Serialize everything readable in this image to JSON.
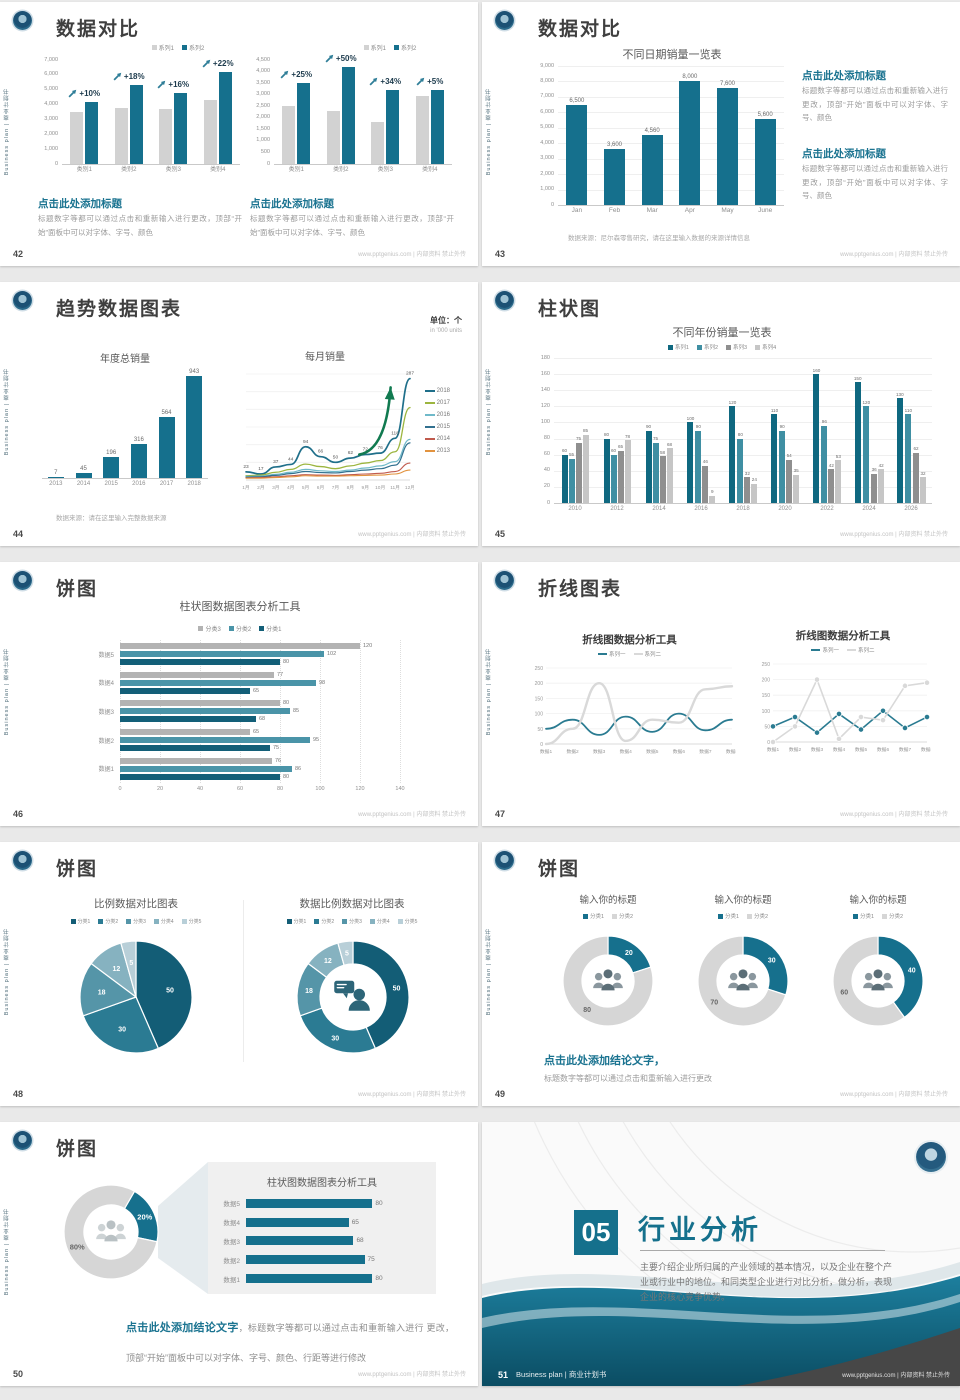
{
  "sidebar_text": "Business plan | 商业计划书",
  "footer_right": "www.pptgenius.com | 内部资料 禁止外传",
  "brand": {
    "teal": "#15708d",
    "teal_mid": "#3f8fa3",
    "gray_bar": "#d2d2d2",
    "heading_teal": "#1a7390"
  },
  "s42": {
    "page": "42",
    "title": "数据对比",
    "left_heading": "点击此处添加标题",
    "left_body": "标题数字等都可以通过点击和重新输入进行更改，顶部“开始”面板中可以对字体、字号、颜色",
    "right_heading": "点击此处添加标题",
    "right_body": "标题数字等都可以通过点击和重新输入进行更改，顶部“开始”面板中可以对字体、字号、颜色"
  },
  "s43": {
    "page": "43",
    "title": "数据对比",
    "block1_heading": "点击此处添加标题",
    "block1_body": "标题数字等都可以通过点击和重新输入进行更改，顶部“开始”面板中可以对字体、字号、颜色",
    "block2_heading": "点击此处添加标题",
    "block2_body": "标题数字等都可以通过点击和重新输入进行更改，顶部“开始”面板中可以对字体、字号、颜色",
    "source": "数据来源：尼尔森零售研究，请在这里输入数据的来源详情信息"
  },
  "s44": {
    "page": "44",
    "title": "趋势数据图表",
    "unit_main": "单位：个",
    "unit_sub": "in '000 units",
    "source": "数据来源：请在这里输入完整数据来源"
  },
  "s45": {
    "page": "45",
    "title": "柱状图"
  },
  "s46": {
    "page": "46",
    "title": "饼图"
  },
  "s47": {
    "page": "47",
    "title": "折线图表"
  },
  "s48": {
    "page": "48",
    "title": "饼图"
  },
  "s49": {
    "page": "49",
    "title": "饼图",
    "conclusion_heading": "点击此处添加结论文字，",
    "conclusion_body": "标题数字等都可以通过点击和重新输入进行更改"
  },
  "s50": {
    "page": "50",
    "title": "饼图",
    "conclusion_bold": "点击此处添加结论文字",
    "conclusion_rest": "，标题数字等都可以通过点击和重新输入进行 更改，顶部“开始”面板中可以对字体、字号、颜色、行距等进行修改"
  },
  "s51": {
    "page": "51",
    "number": "05",
    "title": "行业分析",
    "body": "主要介绍企业所归属的产业领域的基本情况，以及企业在整个产业或行业中的地位。和同类型企业进行对比分析，做分析，表现企业的核心竞争优势。",
    "footer_left": "Business plan | 商业计划书"
  },
  "chart_data": [
    {
      "id": "c42a",
      "type": "bar",
      "title": "",
      "categories": [
        "类别1",
        "类别2",
        "类别3",
        "类别4"
      ],
      "yticks": [
        0,
        1000,
        2000,
        3000,
        4000,
        5000,
        6000,
        7000
      ],
      "ylim": [
        0,
        7000
      ],
      "percent_labels": [
        "+10%",
        "+18%",
        "+16%",
        "+22%"
      ],
      "series": [
        {
          "name": "系列1",
          "color": "#d2d2d2",
          "values": [
            3500,
            3800,
            3700,
            4300
          ]
        },
        {
          "name": "系列2",
          "color": "#15708d",
          "values": [
            4200,
            5300,
            4800,
            6200
          ]
        }
      ]
    },
    {
      "id": "c42b",
      "type": "bar",
      "title": "",
      "categories": [
        "类别1",
        "类别2",
        "类别3",
        "类别4"
      ],
      "yticks": [
        0,
        500,
        1000,
        1500,
        2000,
        2500,
        3000,
        3500,
        4000,
        4500
      ],
      "ylim": [
        0,
        4500
      ],
      "percent_labels": [
        "+25%",
        "+50%",
        "+34%",
        "+5%"
      ],
      "series": [
        {
          "name": "系列1",
          "color": "#d2d2d2",
          "values": [
            2500,
            2300,
            1800,
            2950
          ]
        },
        {
          "name": "系列2",
          "color": "#15708d",
          "values": [
            3500,
            4200,
            3200,
            3200
          ]
        }
      ]
    },
    {
      "id": "c43",
      "type": "bar",
      "title": "不同日期销量一览表",
      "categories": [
        "Jan",
        "Feb",
        "Mar",
        "Apr",
        "May",
        "June"
      ],
      "yticks": [
        0,
        1000,
        2000,
        3000,
        4000,
        5000,
        6000,
        7000,
        8000,
        9000
      ],
      "ylim": [
        0,
        9000
      ],
      "series": [
        {
          "name": "销量",
          "color": "#15708d",
          "values": [
            6500,
            3600,
            4560,
            8000,
            7600,
            5600
          ]
        }
      ]
    },
    {
      "id": "c44a",
      "type": "bar",
      "title": "年度总销量",
      "categories": [
        "2013",
        "2014",
        "2015",
        "2016",
        "2017",
        "2018"
      ],
      "ylim": [
        0,
        1000
      ],
      "series": [
        {
          "name": "年度总销量",
          "color": "#15708d",
          "values": [
            7,
            45,
            196,
            316,
            564,
            943
          ]
        }
      ]
    },
    {
      "id": "c44b",
      "type": "line",
      "title": "每月销量",
      "categories": [
        "1月",
        "2月",
        "3月",
        "4月",
        "5月",
        "6月",
        "7月",
        "8月",
        "9月",
        "10月",
        "11月",
        "12月"
      ],
      "ylim": [
        0,
        300
      ],
      "labeled": "2018",
      "series": [
        {
          "name": "2018",
          "color": "#1f6f8a",
          "values": [
            23,
            17,
            37,
            44,
            94,
            66,
            50,
            62,
            72,
            76,
            118,
            287
          ]
        },
        {
          "name": "2017",
          "color": "#9cb53f",
          "values": [
            12,
            14,
            22,
            30,
            45,
            38,
            32,
            40,
            48,
            55,
            80,
            205
          ]
        },
        {
          "name": "2016",
          "color": "#6fb9c9",
          "values": [
            10,
            11,
            16,
            22,
            30,
            26,
            24,
            28,
            34,
            40,
            52,
            115
          ]
        },
        {
          "name": "2015",
          "color": "#31708f",
          "values": [
            8,
            9,
            13,
            18,
            24,
            21,
            20,
            24,
            28,
            32,
            42,
            105
          ]
        },
        {
          "name": "2014",
          "color": "#c05a4d",
          "values": [
            6,
            7,
            9,
            12,
            15,
            14,
            13,
            15,
            17,
            19,
            24,
            48
          ]
        },
        {
          "name": "2013",
          "color": "#e2933f",
          "values": [
            5,
            5,
            7,
            9,
            12,
            11,
            11,
            12,
            13,
            14,
            17,
            28
          ]
        }
      ]
    },
    {
      "id": "c45",
      "type": "bar",
      "title": "不同年份销量一览表",
      "categories": [
        "2010",
        "2012",
        "2014",
        "2016",
        "2018",
        "2020",
        "2022",
        "2024",
        "2026"
      ],
      "yticks": [
        0,
        20,
        40,
        60,
        80,
        100,
        120,
        140,
        160,
        180
      ],
      "ylim": [
        0,
        180
      ],
      "series": [
        {
          "name": "系列1",
          "color": "#0f6880",
          "values": [
            60,
            80,
            90,
            100,
            120,
            110,
            160,
            150,
            130
          ]
        },
        {
          "name": "系列2",
          "color": "#3f8fa3",
          "values": [
            55,
            60,
            75,
            90,
            80,
            90,
            96,
            120,
            110
          ]
        },
        {
          "name": "系列3",
          "color": "#8f8f8f",
          "values": [
            75,
            65,
            58,
            46,
            32,
            54,
            42,
            36,
            62
          ]
        },
        {
          "name": "系列4",
          "color": "#c6c6c6",
          "values": [
            85,
            78,
            68,
            9,
            24,
            35,
            53,
            42,
            32
          ]
        }
      ]
    },
    {
      "id": "c46",
      "type": "hbar",
      "title": "柱状图数据图表分析工具",
      "xlim": [
        0,
        140
      ],
      "ticks": [
        0,
        20,
        40,
        60,
        80,
        100,
        120,
        140
      ],
      "legend": [
        {
          "label": "分类3",
          "color": "#b3b3b3"
        },
        {
          "label": "分类2",
          "color": "#4a94a8"
        },
        {
          "label": "分类1",
          "color": "#135f78"
        }
      ],
      "groups": [
        {
          "cat": "数据5",
          "bars": [
            {
              "v": 120,
              "color": "#b3b3b3"
            },
            {
              "v": 102,
              "color": "#4a94a8"
            },
            {
              "v": 80,
              "color": "#135f78"
            }
          ]
        },
        {
          "cat": "数据4",
          "bars": [
            {
              "v": 77,
              "color": "#b3b3b3"
            },
            {
              "v": 98,
              "color": "#4a94a8"
            },
            {
              "v": 65,
              "color": "#135f78"
            }
          ]
        },
        {
          "cat": "数据3",
          "bars": [
            {
              "v": 80,
              "color": "#b3b3b3"
            },
            {
              "v": 85,
              "color": "#4a94a8"
            },
            {
              "v": 68,
              "color": "#135f78"
            }
          ]
        },
        {
          "cat": "数据2",
          "bars": [
            {
              "v": 65,
              "color": "#b3b3b3"
            },
            {
              "v": 95,
              "color": "#4a94a8"
            },
            {
              "v": 75,
              "color": "#135f78"
            }
          ]
        },
        {
          "cat": "数据1",
          "bars": [
            {
              "v": 76,
              "color": "#b3b3b3"
            },
            {
              "v": 86,
              "color": "#4a94a8"
            },
            {
              "v": 80,
              "color": "#135f78"
            }
          ]
        }
      ]
    },
    {
      "id": "c47a",
      "type": "line",
      "title": "折线图数据分析工具",
      "categories": [
        "数据1",
        "数据2",
        "数据3",
        "数据4",
        "数据5",
        "数据6",
        "数据7",
        "数据8"
      ],
      "ylim": [
        0,
        250
      ],
      "legend": [
        {
          "label": "系列一",
          "color": "#2a7b91",
          "line": true
        },
        {
          "label": "系列二",
          "color": "#d9d9d9",
          "line": true
        }
      ],
      "series": [
        {
          "name": "系列一",
          "color": "#2a7b91",
          "values": [
            50,
            80,
            30,
            90,
            40,
            100,
            45,
            80
          ]
        },
        {
          "name": "系列二",
          "color": "#d9d9d9",
          "values": [
            0,
            50,
            200,
            10,
            80,
            70,
            180,
            190
          ]
        }
      ]
    },
    {
      "id": "c47b",
      "type": "line",
      "title": "折线图数据分析工具",
      "categories": [
        "数据1",
        "数据2",
        "数据3",
        "数据4",
        "数据5",
        "数据6",
        "数据7",
        "数据8"
      ],
      "ylim": [
        0,
        250
      ],
      "legend": [
        {
          "label": "系列一",
          "color": "#2a7b91",
          "line": true
        },
        {
          "label": "系列二",
          "color": "#d9d9d9",
          "line": true
        }
      ],
      "series": [
        {
          "name": "系列一",
          "color": "#2a7b91",
          "values": [
            50,
            80,
            30,
            90,
            40,
            100,
            45,
            80
          ]
        },
        {
          "name": "系列二",
          "color": "#d9d9d9",
          "values": [
            0,
            50,
            200,
            10,
            80,
            70,
            180,
            190
          ]
        }
      ]
    },
    {
      "id": "c48a",
      "type": "pie",
      "title": "比例数据对比图表",
      "legend": [
        {
          "label": "分类1",
          "color": "#135d76"
        },
        {
          "label": "分类2",
          "color": "#2b7b93"
        },
        {
          "label": "分类3",
          "color": "#5595a8"
        },
        {
          "label": "分类4",
          "color": "#86b2c0"
        },
        {
          "label": "分类5",
          "color": "#b8cfd8"
        }
      ],
      "slices": [
        {
          "v": 50,
          "c": "#135d76",
          "lc": "#ffffff"
        },
        {
          "v": 30,
          "c": "#2b7b93",
          "lc": "#ffffff"
        },
        {
          "v": 18,
          "c": "#5595a8",
          "lc": "#ffffff"
        },
        {
          "v": 12,
          "c": "#86b2c0",
          "lc": "#ffffff"
        },
        {
          "v": 5,
          "c": "#b8cfd8",
          "lc": "#ffffff"
        }
      ]
    },
    {
      "id": "c48b",
      "type": "donut",
      "title": "数据比例数据对比图表",
      "legend": [
        {
          "label": "分类1",
          "color": "#135d76"
        },
        {
          "label": "分类2",
          "color": "#2b7b93"
        },
        {
          "label": "分类3",
          "color": "#5595a8"
        },
        {
          "label": "分类4",
          "color": "#86b2c0"
        },
        {
          "label": "分类5",
          "color": "#b8cfd8"
        }
      ],
      "slices": [
        {
          "v": 50,
          "c": "#135d76",
          "lc": "#ffffff"
        },
        {
          "v": 30,
          "c": "#2b7b93",
          "lc": "#ffffff"
        },
        {
          "v": 18,
          "c": "#5595a8",
          "lc": "#ffffff"
        },
        {
          "v": 12,
          "c": "#86b2c0",
          "lc": "#ffffff"
        },
        {
          "v": 5,
          "c": "#b8cfd8",
          "lc": "#ffffff"
        }
      ]
    },
    {
      "id": "c49a",
      "type": "donut",
      "title": "输入你的标题",
      "legend": [
        {
          "label": "分类1",
          "color": "#16708d"
        },
        {
          "label": "分类2",
          "color": "#d6d6d6"
        }
      ],
      "slices": [
        {
          "v": 20,
          "c": "#16708d",
          "lc": "#ffffff"
        },
        {
          "v": 80,
          "c": "#d6d6d6",
          "lc": "#666666"
        }
      ]
    },
    {
      "id": "c49b",
      "type": "donut",
      "title": "输入你的标题",
      "legend": [
        {
          "label": "分类1",
          "color": "#16708d"
        },
        {
          "label": "分类2",
          "color": "#d6d6d6"
        }
      ],
      "slices": [
        {
          "v": 30,
          "c": "#16708d",
          "lc": "#ffffff"
        },
        {
          "v": 70,
          "c": "#d6d6d6",
          "lc": "#666666"
        }
      ]
    },
    {
      "id": "c49c",
      "type": "donut",
      "title": "输入你的标题",
      "legend": [
        {
          "label": "分类1",
          "color": "#16708d"
        },
        {
          "label": "分类2",
          "color": "#d6d6d6"
        }
      ],
      "slices": [
        {
          "v": 40,
          "c": "#16708d",
          "lc": "#ffffff"
        },
        {
          "v": 60,
          "c": "#d6d6d6",
          "lc": "#666666"
        }
      ]
    },
    {
      "id": "c50a",
      "type": "donut",
      "title": "",
      "slices": [
        {
          "v": 20,
          "label": "20%",
          "c": "#16708d",
          "lc": "#ffffff"
        },
        {
          "v": 80,
          "label": "80%",
          "c": "#d6d6d6",
          "lc": "#666666"
        }
      ]
    },
    {
      "id": "c50b",
      "type": "hbar",
      "title": "柱状图数据图表分析工具",
      "xlim": [
        0,
        100
      ],
      "groups": [
        {
          "cat": "数据5",
          "bars": [
            {
              "v": 80,
              "color": "#15708d"
            }
          ]
        },
        {
          "cat": "数据4",
          "bars": [
            {
              "v": 65,
              "color": "#15708d"
            }
          ]
        },
        {
          "cat": "数据3",
          "bars": [
            {
              "v": 68,
              "color": "#15708d"
            }
          ]
        },
        {
          "cat": "数据2",
          "bars": [
            {
              "v": 75,
              "color": "#15708d"
            }
          ]
        },
        {
          "cat": "数据1",
          "bars": [
            {
              "v": 80,
              "color": "#15708d"
            }
          ]
        }
      ]
    }
  ]
}
